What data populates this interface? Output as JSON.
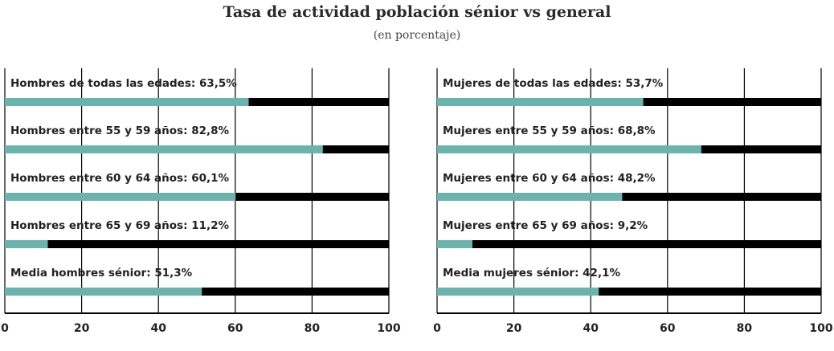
{
  "chart_data": [
    {
      "type": "bar",
      "orientation": "horizontal",
      "stacked_to": 100,
      "xlim": [
        0,
        100
      ],
      "ticks": [
        "0",
        "20",
        "40",
        "60",
        "80",
        "100"
      ],
      "grid": true,
      "labels": [
        "Hombres de todas las edades: 63,5%",
        "Hombres entre 55 y 59 años: 82,8%",
        "Hombres entre 60 y 64 años: 60,1%",
        "Hombres entre 65 y 69 años: 11,2%",
        "Media hombres sénior: 51,3%"
      ],
      "values": [
        63.5,
        82.8,
        60.1,
        11.2,
        51.3
      ]
    },
    {
      "type": "bar",
      "orientation": "horizontal",
      "stacked_to": 100,
      "xlim": [
        0,
        100
      ],
      "ticks": [
        "0",
        "20",
        "40",
        "60",
        "80",
        "100"
      ],
      "grid": true,
      "labels": [
        "Mujeres de todas las edades: 53,7%",
        "Mujeres entre 55 y 59 años: 68,8%",
        "Mujeres entre 60 y 64 años: 48,2%",
        "Mujeres entre 65 y 69 años: 9,2%",
        "Media mujeres sénior: 42,1%"
      ],
      "values": [
        53.7,
        68.8,
        48.2,
        9.2,
        42.1
      ]
    }
  ],
  "title": "Tasa de actividad población sénior vs general",
  "subtitle": "(en porcentaje)",
  "colors": {
    "value": "#6bb3ad",
    "remainder": "#000000"
  }
}
